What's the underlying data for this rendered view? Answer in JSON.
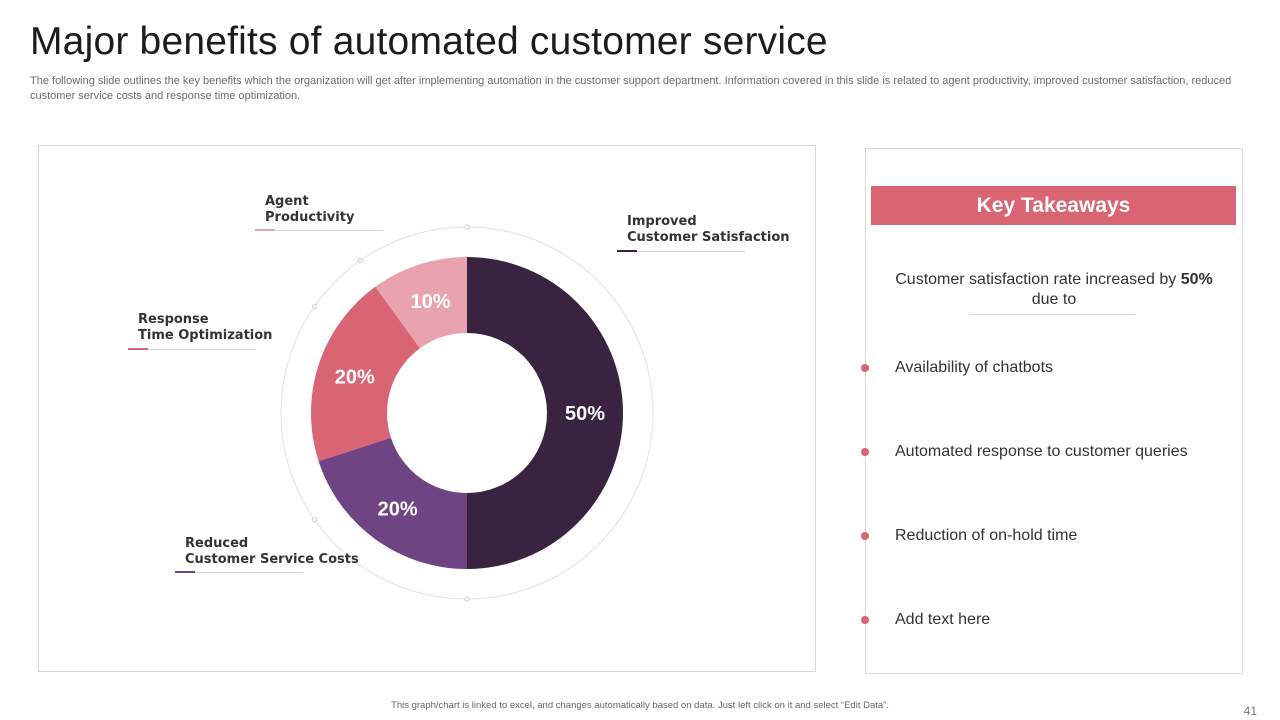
{
  "title": "Major benefits of automated customer service",
  "subtitle": "The following slide outlines the key benefits which the organization will get after implementing automation in the customer support department. Information covered in this slide is related to agent productivity, improved customer satisfaction, reduced customer service costs and response time optimization.",
  "chart_data": {
    "type": "pie",
    "variant": "doughnut",
    "title": "",
    "categories": [
      "Improved Customer Satisfaction",
      "Reduced Customer Service Costs",
      "Response Time Optimization",
      "Agent Productivity"
    ],
    "values": [
      50,
      20,
      20,
      10
    ],
    "labels": [
      "50%",
      "20%",
      "20%",
      "10%"
    ],
    "colors": [
      "#3a2340",
      "#6e4482",
      "#d96473",
      "#e8a3ae"
    ],
    "category_labels": [
      {
        "line1": "Improved",
        "line2": "Customer Satisfaction"
      },
      {
        "line1": "Reduced",
        "line2": "Customer Service Costs"
      },
      {
        "line1": "Response",
        "line2": "Time Optimization"
      },
      {
        "line1": "Agent",
        "line2": "Productivity"
      }
    ]
  },
  "takeaways": {
    "header": "Key Takeaways",
    "summary_before": "Customer satisfaction rate increased by ",
    "summary_bold": "50%",
    "summary_after": " due to",
    "items": [
      "Availability of chatbots",
      "Automated response to customer queries",
      "Reduction of on-hold time",
      "Add text here"
    ]
  },
  "footer": "This graph/chart is linked to excel, and changes automatically based on data. Just left click on it and select “Edit Data”.",
  "page_number": "41",
  "colors": {
    "accent": "#d96473",
    "dark": "#3a2340",
    "purple": "#6e4482",
    "light_pink": "#e8a3ae"
  }
}
